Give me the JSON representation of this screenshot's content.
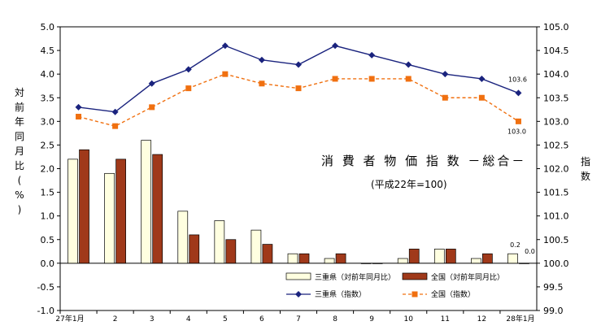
{
  "chart_data": {
    "type": "bar",
    "title": "消 費 者 物 価 指 数  －総合－",
    "subtitle": "(平成22年=100)",
    "left_axis_label": "対前年同月比(%)",
    "right_axis_label": "指数",
    "categories": [
      "27年1月",
      "2",
      "3",
      "4",
      "5",
      "6",
      "7",
      "8",
      "9",
      "10",
      "11",
      "12",
      "28年1月"
    ],
    "left_ylim": [
      -1.0,
      5.0
    ],
    "left_ticks": [
      "-1.0",
      "-0.5",
      "0.0",
      "0.5",
      "1.0",
      "1.5",
      "2.0",
      "2.5",
      "3.0",
      "3.5",
      "4.0",
      "4.5",
      "5.0"
    ],
    "right_ylim": [
      99.0,
      105.0
    ],
    "right_ticks": [
      "99.0",
      "99.5",
      "100.0",
      "100.5",
      "101.0",
      "101.5",
      "102.0",
      "102.5",
      "103.0",
      "103.5",
      "104.0",
      "104.5",
      "105.0"
    ],
    "bar_series": [
      {
        "name": "三重県（対前年同月比）",
        "color": "#ffffe0",
        "values": [
          2.2,
          1.9,
          2.6,
          1.1,
          0.9,
          0.7,
          0.2,
          0.1,
          0.0,
          0.1,
          0.3,
          0.1,
          0.2
        ]
      },
      {
        "name": "全国（対前年同月比）",
        "color": "#a0391a",
        "values": [
          2.4,
          2.2,
          2.3,
          0.6,
          0.5,
          0.4,
          0.2,
          0.2,
          0.0,
          0.3,
          0.3,
          0.2,
          0.0
        ]
      }
    ],
    "line_series": [
      {
        "name": "三重県（指数）",
        "color": "#1a237e",
        "values": [
          103.3,
          103.2,
          103.8,
          104.1,
          104.6,
          104.3,
          104.2,
          104.6,
          104.4,
          104.2,
          104.0,
          103.9,
          103.6
        ]
      },
      {
        "name": "全国（指数）",
        "color": "#f07010",
        "values": [
          103.1,
          102.9,
          103.3,
          103.7,
          104.0,
          103.8,
          103.7,
          103.9,
          103.9,
          103.9,
          103.5,
          103.5,
          103.0
        ]
      }
    ],
    "data_labels": {
      "bar_last": [
        "0.2",
        "0.0"
      ],
      "line_last": [
        "103.6",
        "103.0"
      ]
    },
    "grid": false,
    "legend_position": "bottom-right"
  }
}
